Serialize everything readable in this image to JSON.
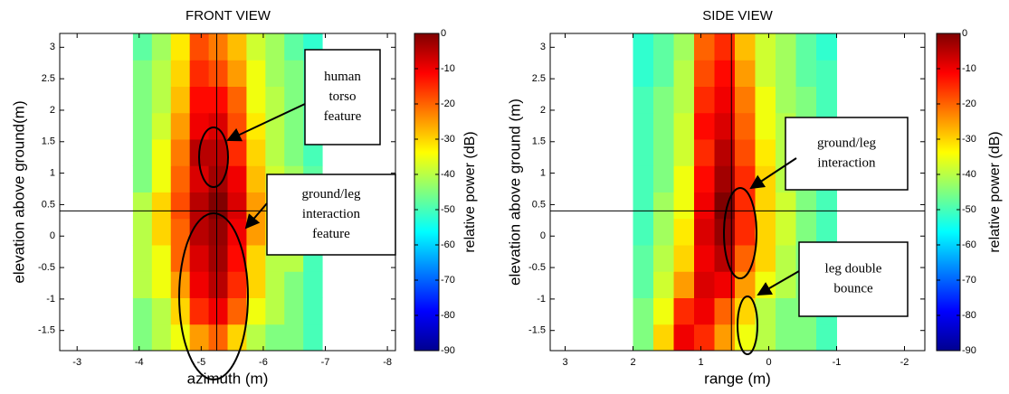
{
  "chart_data": [
    {
      "type": "heatmap",
      "title": "FRONT VIEW",
      "xlabel": "azimuth (m)",
      "ylabel": "elevation above ground(m)",
      "xlim": [
        -2.72,
        -8.13
      ],
      "ylim": [
        -1.82,
        3.22
      ],
      "xticks": [
        -3,
        -4,
        -5,
        -6,
        -7,
        -8
      ],
      "yticks": [
        -1.5,
        -1,
        -0.5,
        0,
        0.5,
        1,
        1.5,
        2,
        2.5,
        3
      ],
      "x_edges": [
        -3.9,
        -4.205,
        -4.51,
        -4.815,
        -5.12,
        -5.425,
        -5.73,
        -6.035,
        -6.34,
        -6.645,
        -6.95
      ],
      "y_edges": [
        -1.82,
        -1.4,
        -0.98,
        -0.56,
        -0.14,
        0.28,
        0.7,
        1.12,
        1.54,
        1.96,
        2.38,
        2.8,
        3.22
      ],
      "z": [
        [
          -45,
          -40,
          -35,
          -25,
          -20,
          -30,
          -40,
          -45,
          -45,
          -50
        ],
        [
          -45,
          -40,
          -30,
          -15,
          -10,
          -20,
          -35,
          -40,
          -45,
          -50
        ],
        [
          -40,
          -35,
          -25,
          -10,
          -5,
          -15,
          -30,
          -40,
          -45,
          -50
        ],
        [
          -40,
          -35,
          -20,
          -8,
          -3,
          -12,
          -30,
          -40,
          -40,
          -50
        ],
        [
          -40,
          -30,
          -20,
          -5,
          -2,
          -10,
          -25,
          -35,
          -40,
          -45
        ],
        [
          -40,
          -30,
          -18,
          -5,
          0,
          -8,
          -25,
          -35,
          -40,
          -45
        ],
        [
          -45,
          -35,
          -20,
          -8,
          -3,
          -10,
          -28,
          -38,
          -42,
          -48
        ],
        [
          -45,
          -35,
          -22,
          -5,
          -5,
          -15,
          -30,
          -40,
          -45,
          -50
        ],
        [
          -45,
          -38,
          -25,
          -10,
          -8,
          -18,
          -32,
          -40,
          -45,
          -50
        ],
        [
          -45,
          -40,
          -28,
          -12,
          -12,
          -20,
          -35,
          -40,
          -45,
          -50
        ],
        [
          -45,
          -40,
          -30,
          -15,
          -18,
          -25,
          -35,
          -42,
          -45,
          -50
        ],
        [
          -48,
          -42,
          -32,
          -18,
          -22,
          -28,
          -38,
          -42,
          -48,
          -52
        ]
      ],
      "crosshair": {
        "x": -5.25,
        "y": 0.4
      },
      "colorbar": {
        "label": "relative power (dB)",
        "lim": [
          -90,
          0
        ],
        "ticks": [
          0,
          -10,
          -20,
          -30,
          -40,
          -50,
          -60,
          -70,
          -80,
          -90
        ],
        "colormap": "jet"
      },
      "annotations": [
        {
          "lines": [
            "human",
            "torso",
            "feature"
          ]
        },
        {
          "lines": [
            "ground/leg",
            "interaction",
            "feature"
          ]
        }
      ]
    },
    {
      "type": "heatmap",
      "title": "SIDE VIEW",
      "xlabel": "range (m)",
      "ylabel": "elevation above ground (m)",
      "xlim": [
        3.22,
        -2.3
      ],
      "xticks": [
        3,
        2,
        1,
        0,
        -1,
        -2
      ],
      "ylim": [
        -1.82,
        3.22
      ],
      "yticks": [
        -1.5,
        -1,
        -0.5,
        0,
        0.5,
        1,
        1.5,
        2,
        2.5,
        3
      ],
      "x_edges": [
        2,
        1.7,
        1.4,
        1.1,
        0.8,
        0.5,
        0.2,
        -0.1,
        -0.4,
        -0.7,
        -1
      ],
      "y_edges": [
        -1.82,
        -1.4,
        -0.98,
        -0.56,
        -0.14,
        0.28,
        0.7,
        1.12,
        1.54,
        1.96,
        2.38,
        2.8,
        3.22
      ],
      "z": [
        [
          -45,
          -30,
          -10,
          -15,
          -25,
          -35,
          -40,
          -45,
          -45,
          -50
        ],
        [
          -45,
          -35,
          -15,
          -10,
          -20,
          -30,
          -40,
          -45,
          -45,
          -50
        ],
        [
          -48,
          -38,
          -25,
          -8,
          -10,
          -25,
          -35,
          -40,
          -45,
          -50
        ],
        [
          -48,
          -40,
          -30,
          -10,
          -5,
          -20,
          -30,
          -40,
          -45,
          -50
        ],
        [
          -50,
          -42,
          -32,
          -8,
          -2,
          -15,
          -30,
          -38,
          -45,
          -50
        ],
        [
          -50,
          -42,
          -35,
          -10,
          0,
          -15,
          -30,
          -38,
          -45,
          -50
        ],
        [
          -50,
          -45,
          -35,
          -12,
          -3,
          -15,
          -30,
          -40,
          -45,
          -50
        ],
        [
          -50,
          -45,
          -38,
          -15,
          -5,
          -18,
          -32,
          -40,
          -45,
          -50
        ],
        [
          -50,
          -45,
          -38,
          -12,
          -8,
          -20,
          -35,
          -40,
          -45,
          -50
        ],
        [
          -50,
          -45,
          -40,
          -15,
          -10,
          -22,
          -35,
          -42,
          -45,
          -50
        ],
        [
          -52,
          -48,
          -40,
          -18,
          -12,
          -25,
          -38,
          -42,
          -48,
          -50
        ],
        [
          -52,
          -48,
          -42,
          -20,
          -15,
          -28,
          -38,
          -42,
          -48,
          -52
        ]
      ],
      "crosshair": {
        "x": 0.55,
        "y": 0.4
      },
      "colorbar": {
        "label": "relative power (dB)",
        "lim": [
          -90,
          0
        ],
        "ticks": [
          0,
          -10,
          -20,
          -30,
          -40,
          -50,
          -60,
          -70,
          -80,
          -90
        ],
        "colormap": "jet"
      },
      "annotations": [
        {
          "lines": [
            "ground/leg",
            "interaction"
          ]
        },
        {
          "lines": [
            "leg double",
            "bounce"
          ]
        }
      ]
    }
  ]
}
